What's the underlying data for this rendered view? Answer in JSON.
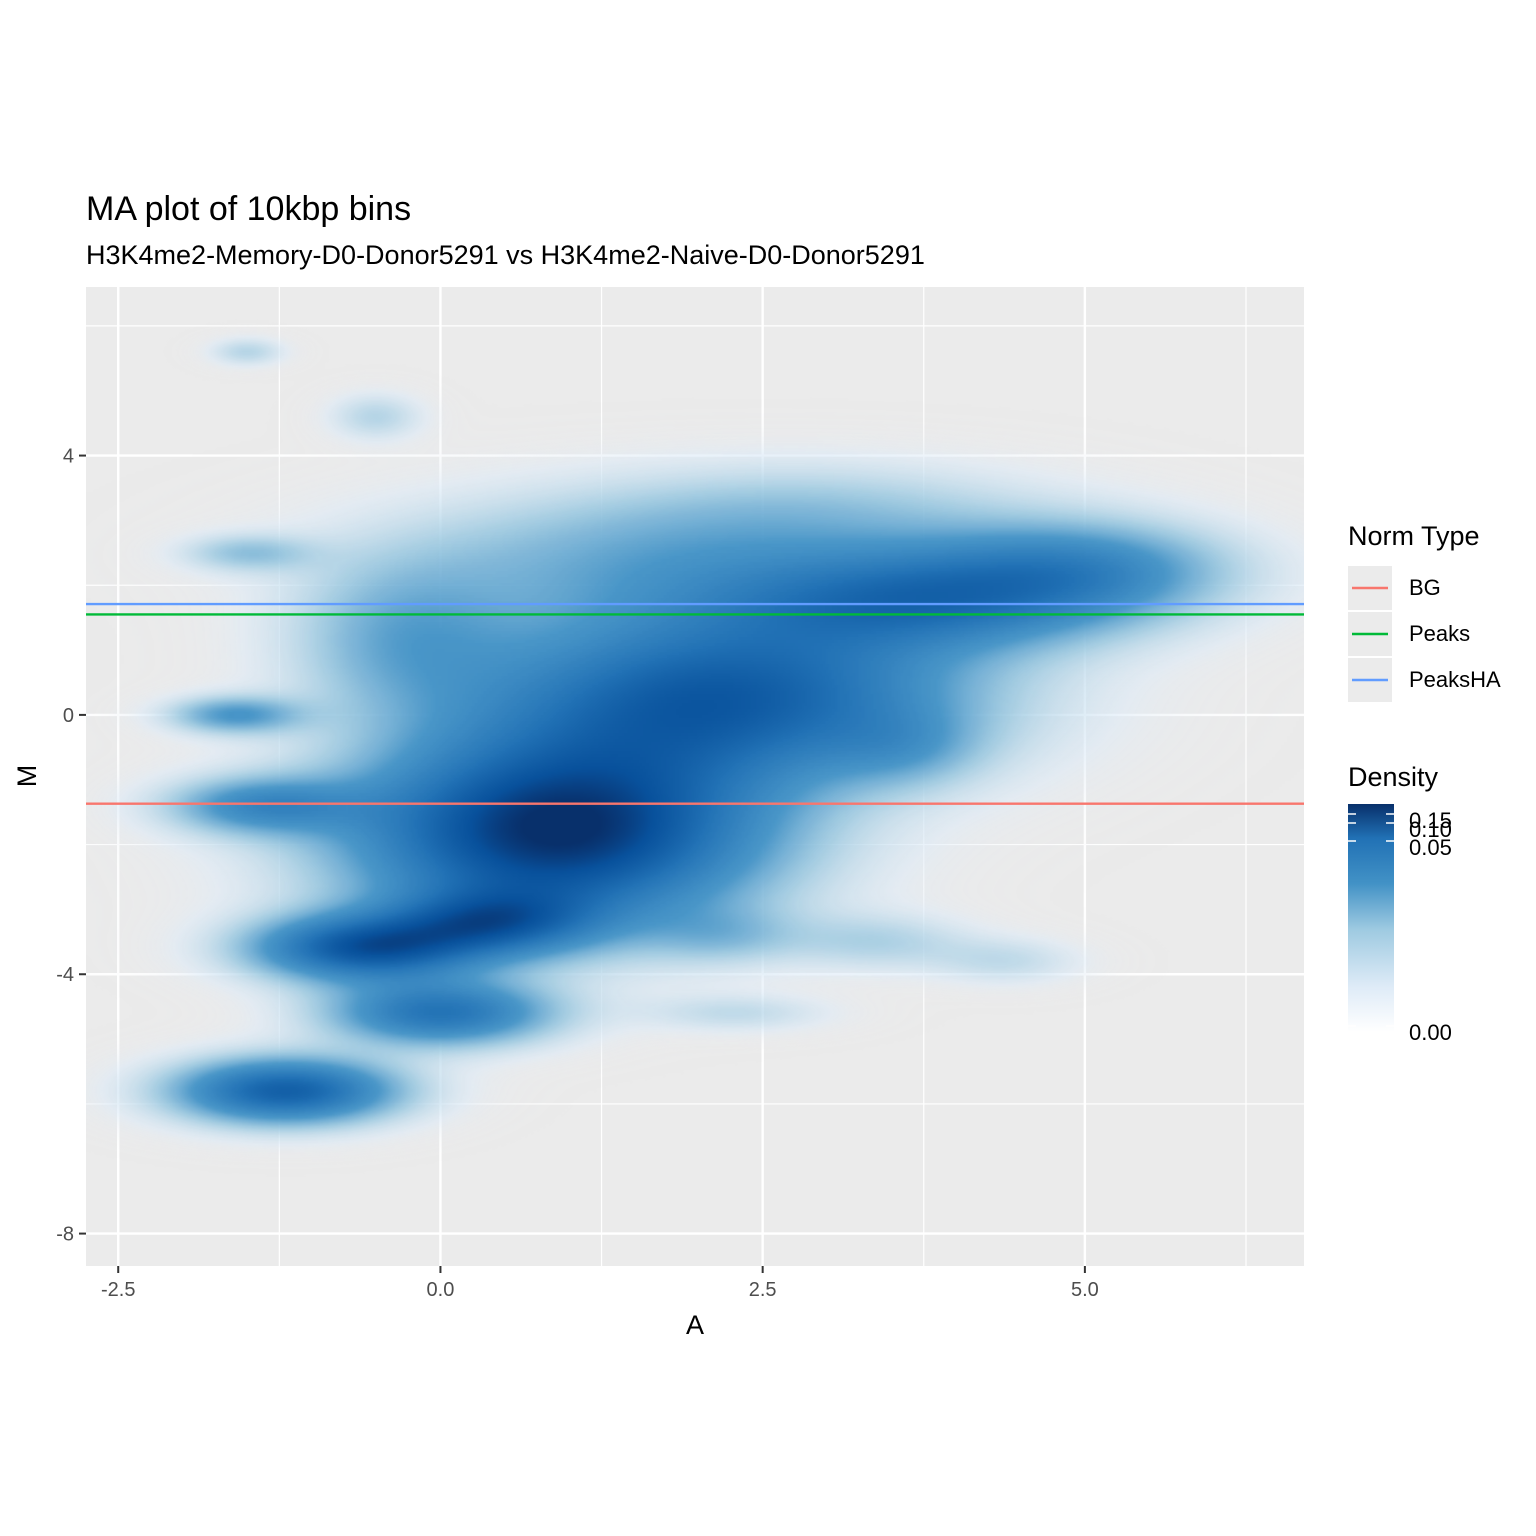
{
  "chart_data": {
    "type": "heatmap",
    "title": "MA plot of 10kbp bins",
    "subtitle": "H3K4me2-Memory-D0-Donor5291 vs H3K4me2-Naive-D0-Donor5291",
    "xlabel": "A",
    "ylabel": "M",
    "xlim": [
      -2.75,
      6.7
    ],
    "ylim": [
      -8.5,
      6.6
    ],
    "x_ticks": [
      -2.5,
      0.0,
      2.5,
      5.0
    ],
    "x_tick_labels": [
      "-2.5",
      "0.0",
      "2.5",
      "5.0"
    ],
    "y_ticks": [
      4,
      0,
      -4,
      -8
    ],
    "y_tick_labels": [
      "4",
      "0",
      "-4",
      "-8"
    ],
    "grid": true,
    "lines": {
      "legend_title": "Norm Type",
      "series": [
        {
          "name": "BG",
          "color": "#F8766D",
          "y": -1.37
        },
        {
          "name": "Peaks",
          "color": "#00BA38",
          "y": 1.55
        },
        {
          "name": "PeaksHA",
          "color": "#619CFF",
          "y": 1.71
        }
      ]
    },
    "density": {
      "legend_title": "Density",
      "scale_ticks": [
        0.15,
        0.1,
        0.05,
        0.0
      ],
      "scale_labels": [
        "0.15",
        "0.10",
        "0.05",
        "0.00"
      ],
      "color_low": "#f7fbff",
      "color_high": "#08306b"
    },
    "blobs": [
      {
        "x": 0.9,
        "y": -1.8,
        "sx": 1.1,
        "sy": 1.0,
        "w": 1.0
      },
      {
        "x": 2.2,
        "y": 0.3,
        "sx": 1.3,
        "sy": 0.9,
        "w": 0.75
      },
      {
        "x": 3.8,
        "y": 1.8,
        "sx": 1.1,
        "sy": 0.55,
        "w": 0.55
      },
      {
        "x": 5.0,
        "y": 2.3,
        "sx": 0.8,
        "sy": 0.5,
        "w": 0.35
      },
      {
        "x": 1.5,
        "y": 2.4,
        "sx": 1.4,
        "sy": 0.7,
        "w": 0.25
      },
      {
        "x": 3.0,
        "y": 3.2,
        "sx": 1.2,
        "sy": 0.5,
        "w": 0.15
      },
      {
        "x": -0.3,
        "y": 1.2,
        "sx": 0.6,
        "sy": 0.8,
        "w": 0.25
      },
      {
        "x": -1.2,
        "y": -5.8,
        "sx": 0.6,
        "sy": 0.35,
        "w": 0.75
      },
      {
        "x": -0.6,
        "y": -3.6,
        "sx": 0.6,
        "sy": 0.35,
        "w": 0.75
      },
      {
        "x": 0.0,
        "y": -4.6,
        "sx": 0.6,
        "sy": 0.35,
        "w": 0.6
      },
      {
        "x": 0.4,
        "y": -3.2,
        "sx": 0.55,
        "sy": 0.35,
        "w": 0.5
      },
      {
        "x": -1.4,
        "y": -1.4,
        "sx": 0.5,
        "sy": 0.3,
        "w": 0.4
      },
      {
        "x": -1.6,
        "y": 0.0,
        "sx": 0.35,
        "sy": 0.2,
        "w": 0.35
      },
      {
        "x": -1.5,
        "y": 2.5,
        "sx": 0.35,
        "sy": 0.2,
        "w": 0.2
      },
      {
        "x": -1.5,
        "y": 5.6,
        "sx": 0.2,
        "sy": 0.15,
        "w": 0.15
      },
      {
        "x": -0.5,
        "y": 4.6,
        "sx": 0.25,
        "sy": 0.25,
        "w": 0.15
      },
      {
        "x": 2.2,
        "y": -3.4,
        "sx": 0.4,
        "sy": 0.3,
        "w": 0.15
      },
      {
        "x": 3.4,
        "y": -3.5,
        "sx": 0.5,
        "sy": 0.3,
        "w": 0.15
      },
      {
        "x": 4.4,
        "y": -3.8,
        "sx": 0.4,
        "sy": 0.25,
        "w": 0.12
      },
      {
        "x": 2.3,
        "y": -4.6,
        "sx": 0.5,
        "sy": 0.2,
        "w": 0.12
      },
      {
        "x": 3.6,
        "y": -0.5,
        "sx": 0.4,
        "sy": 0.4,
        "w": 0.15
      }
    ]
  }
}
